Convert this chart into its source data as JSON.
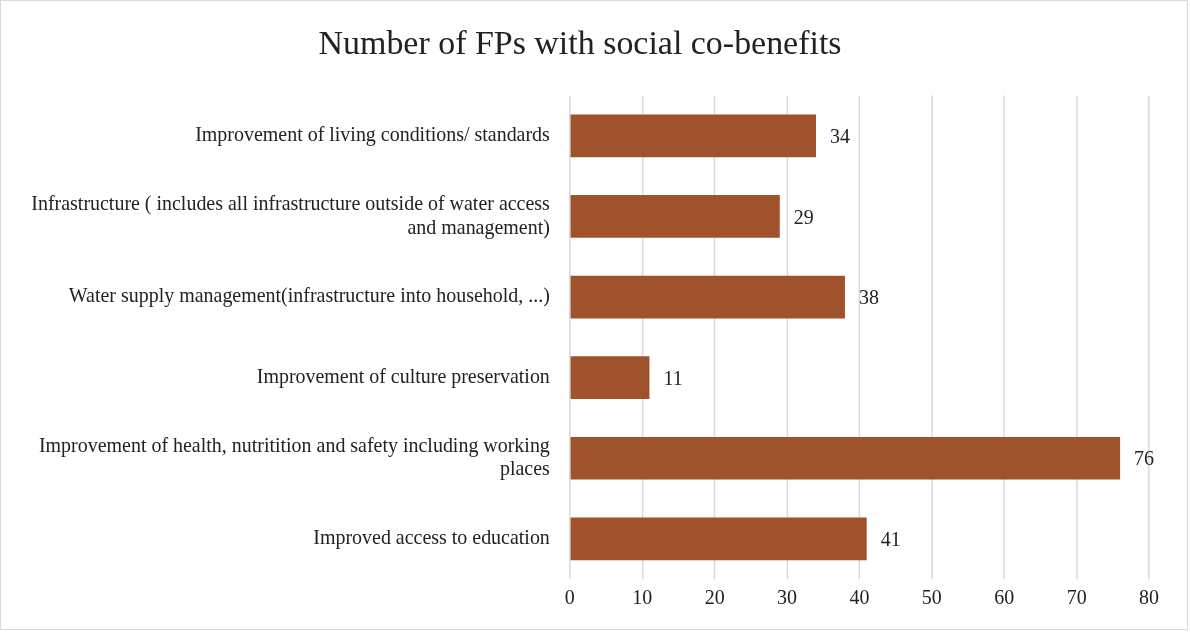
{
  "chart_data": {
    "type": "bar",
    "orientation": "horizontal",
    "title": "Number of FPs with social co-benefits",
    "categories": [
      "Improvement of living conditions/ standards",
      "Infrastructure ( includes all infrastructure outside of water access and management)",
      "Water supply management(infrastructure into household, ...)",
      "Improvement of culture preservation",
      "Improvement of health, nutritition and safety including working places",
      "Improved access to education"
    ],
    "values": [
      34,
      29,
      38,
      11,
      76,
      41
    ],
    "color": "#a0522d",
    "xlim": [
      0,
      80
    ],
    "xticks": [
      0,
      10,
      20,
      30,
      40,
      50,
      60,
      70,
      80
    ],
    "grid": "x",
    "data_labels": true,
    "legend": false
  }
}
